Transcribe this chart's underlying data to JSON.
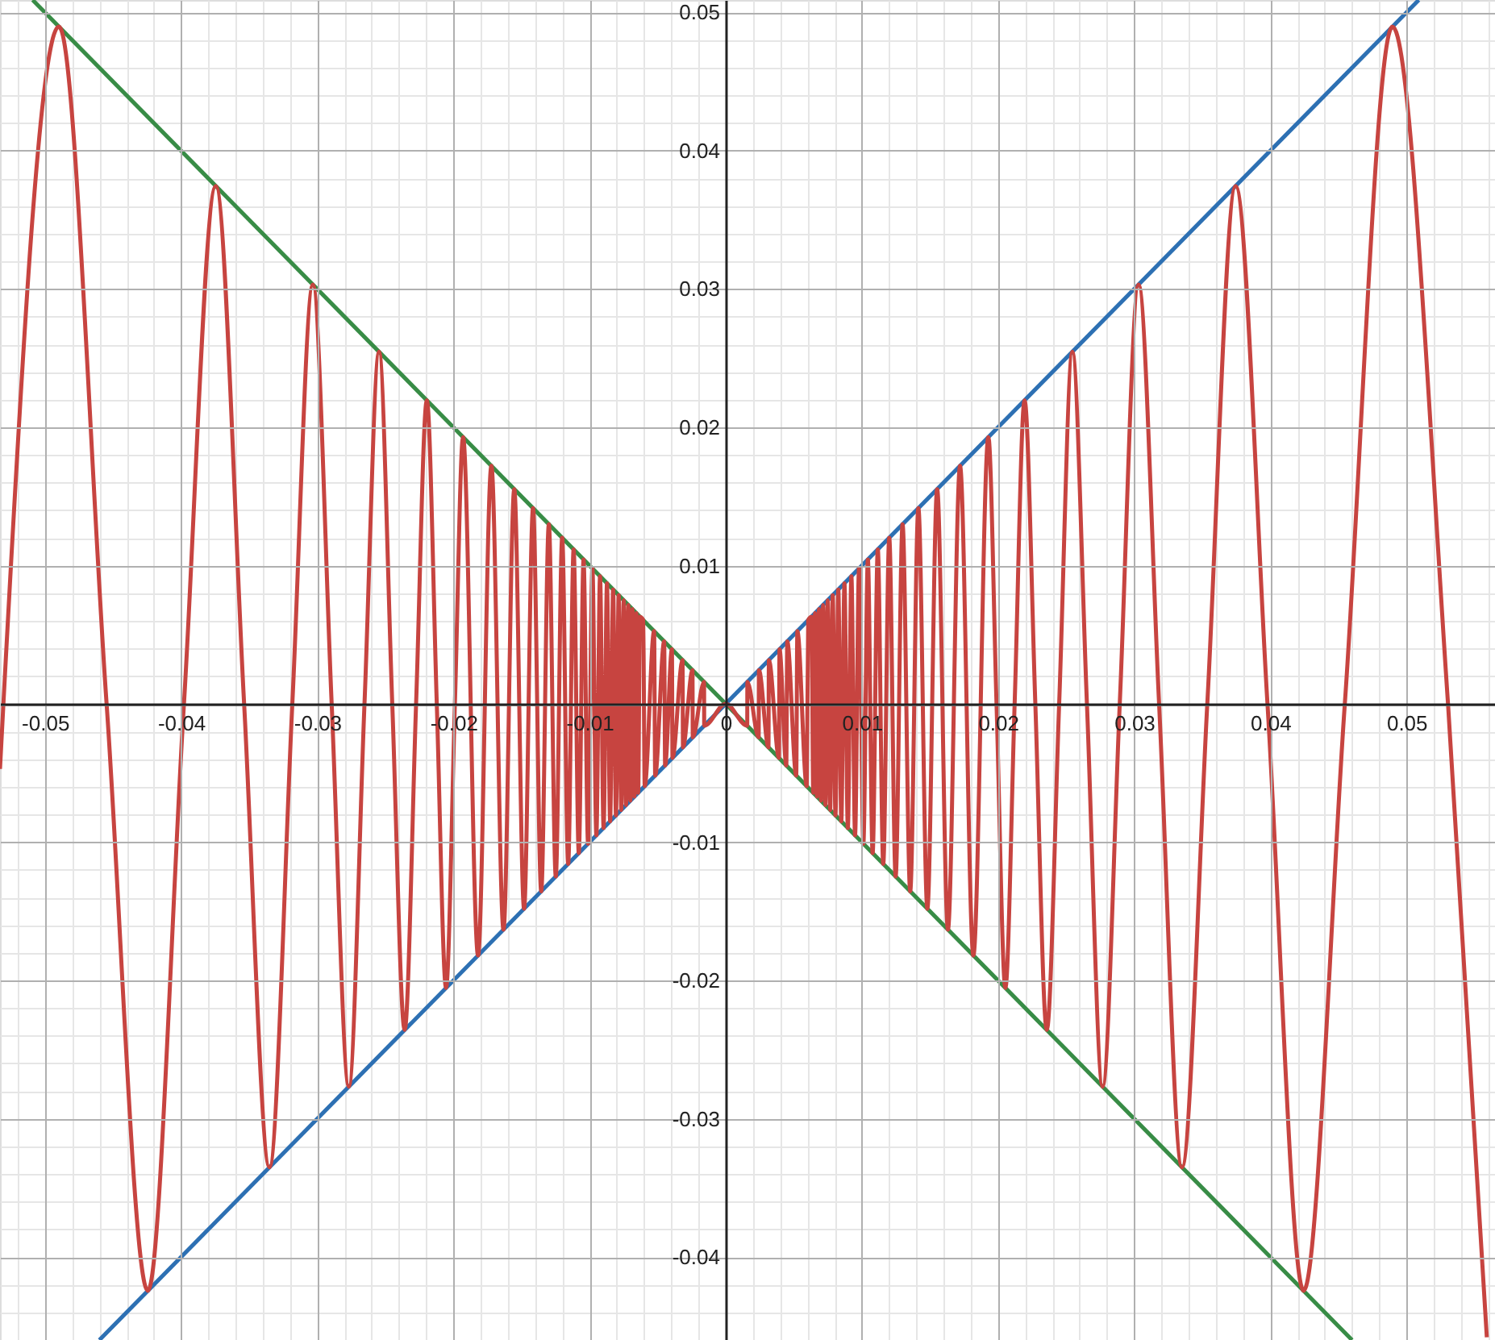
{
  "chart_data": {
    "type": "line",
    "xlim": [
      -0.0533,
      0.0565
    ],
    "ylim": [
      -0.046,
      0.0509
    ],
    "xticks": [
      -0.05,
      -0.04,
      -0.03,
      -0.02,
      -0.01,
      0,
      0.01,
      0.02,
      0.03,
      0.04,
      0.05
    ],
    "yticks": [
      -0.04,
      -0.03,
      -0.02,
      -0.01,
      {
        "value": 0,
        "label": null
      },
      0.01,
      0.02,
      0.03,
      0.04,
      0.05
    ],
    "grid": true,
    "legend": false,
    "marker": "none",
    "line_style": "solid",
    "series": [
      {
        "color": "#c74440",
        "x": [
          -0.0533,
          -0.05305,
          -0.04897,
          -0.04547,
          -0.04244,
          -0.03979,
          -0.03745,
          -0.03537,
          -0.03351,
          -0.03183,
          -0.03032,
          -0.02894,
          -0.02768,
          -0.02653,
          -0.02546,
          -0.02449,
          -0.02358,
          -0.02274,
          -0.02195,
          -0.02122,
          -0.02054,
          -0.01989,
          -0.01929,
          -0.01819,
          -0.01721,
          -0.01632,
          -0.01553,
          -0.01481,
          -0.01415,
          -0.01355,
          -0.01299,
          -0.01248,
          -0.01201,
          -0.01157,
          -0.01117,
          -0.01079,
          -0.01044,
          -0.01011,
          -0.00979,
          -0.0095,
          -0.00923,
          -0.00897,
          -0.00872,
          -0.00849,
          -0.00827,
          -0.00806,
          -0.00786,
          -0.00767,
          -0.00749,
          -0.00732,
          -0.00715,
          -0.007,
          -0.00685,
          -0.0067,
          -0.00656,
          -0.00643,
          -0.0063,
          -0.00606,
          -0.00595,
          -0.00526,
          -0.00518,
          -0.00452,
          -0.00445,
          -0.00395,
          -0.00391,
          -0.00317,
          -0.00314,
          -0.00244,
          -0.00242,
          -0.00159,
          -0.00158,
          0,
          0.00158,
          0.00159,
          0.00242,
          0.00244,
          0.00314,
          0.00317,
          0.00391,
          0.00395,
          0.00445,
          0.00452,
          0.00518,
          0.00526,
          0.00595,
          0.00606,
          0.0063,
          0.00643,
          0.00656,
          0.0067,
          0.00685,
          0.007,
          0.00715,
          0.00732,
          0.00749,
          0.00767,
          0.00786,
          0.00806,
          0.00827,
          0.00849,
          0.00872,
          0.00897,
          0.00923,
          0.0095,
          0.00979,
          0.01011,
          0.01044,
          0.01079,
          0.01117,
          0.01157,
          0.01201,
          0.01248,
          0.01299,
          0.01355,
          0.01415,
          0.01481,
          0.01553,
          0.01632,
          0.01721,
          0.01819,
          0.01929,
          0.01989,
          0.02054,
          0.02122,
          0.02195,
          0.02274,
          0.02358,
          0.02449,
          0.02546,
          0.02653,
          0.02768,
          0.02894,
          0.03032,
          0.03183,
          0.03351,
          0.03537,
          0.03745,
          0.03979,
          0.04244,
          0.04547,
          0.04897,
          0.05305,
          0.0559
        ],
        "values": [
          -0.0047,
          0,
          0.04897,
          0,
          -0.04244,
          0,
          0.03745,
          0,
          -0.03351,
          0,
          0.03032,
          0,
          -0.02768,
          0,
          0.02546,
          0,
          -0.02358,
          0,
          0.02195,
          0,
          -0.02054,
          0,
          0.01929,
          -0.01819,
          0.01721,
          -0.01632,
          0.01553,
          -0.01481,
          0.01415,
          -0.01355,
          0.01299,
          -0.01248,
          0.01201,
          -0.01157,
          0.01117,
          -0.01079,
          0.01044,
          -0.01011,
          0.00979,
          -0.0095,
          0.00923,
          -0.00897,
          0.00872,
          -0.00849,
          0.00827,
          -0.00806,
          0.00786,
          -0.00767,
          0.00749,
          -0.00732,
          0.00715,
          -0.007,
          0.00685,
          -0.0067,
          0.00656,
          -0.00643,
          0.0063,
          0.00606,
          -0.00595,
          0.00526,
          -0.00518,
          0.00452,
          -0.00445,
          0.00395,
          -0.00391,
          0.00317,
          -0.00314,
          0.00244,
          -0.00242,
          0.00159,
          -0.00158,
          0,
          -0.00158,
          0.00159,
          -0.00242,
          0.00244,
          -0.00314,
          0.00317,
          -0.00391,
          0.00395,
          -0.00445,
          0.00452,
          -0.00518,
          0.00526,
          -0.00595,
          0.00606,
          0.0063,
          -0.00643,
          0.00656,
          -0.0067,
          0.00685,
          -0.007,
          0.00715,
          -0.00732,
          0.00749,
          -0.00767,
          0.00786,
          -0.00806,
          0.00827,
          -0.00849,
          0.00872,
          -0.00897,
          0.00923,
          -0.0095,
          0.00979,
          -0.01011,
          0.01044,
          -0.01079,
          0.01117,
          -0.01157,
          0.01201,
          -0.01248,
          0.01299,
          -0.01355,
          0.01415,
          -0.01481,
          0.01553,
          -0.01632,
          0.01721,
          -0.01819,
          0.01929,
          0,
          -0.02054,
          0,
          0.02195,
          0,
          -0.02358,
          0,
          0.02546,
          0,
          -0.02768,
          0,
          0.03032,
          0,
          -0.03351,
          0,
          0.03745,
          0,
          -0.04244,
          0,
          0.04897,
          0,
          -0.0458
        ]
      },
      {
        "color": "#2d70b3",
        "x": [
          -0.046,
          0.0509
        ],
        "values": [
          -0.046,
          0.0509
        ]
      },
      {
        "color": "#388c46",
        "x": [
          -0.0509,
          0.046
        ],
        "values": [
          0.0509,
          -0.046
        ]
      }
    ]
  }
}
